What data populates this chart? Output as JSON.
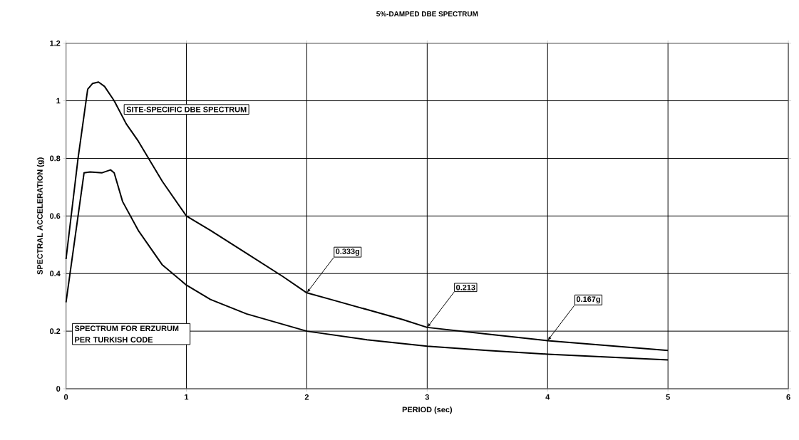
{
  "chart_data": {
    "type": "line",
    "title": "5%-DAMPED DBE SPECTRUM",
    "xlabel": "PERIOD (sec)",
    "ylabel": "SPECTRAL ACCELERATION (g)",
    "xlim": [
      0,
      6
    ],
    "ylim": [
      0,
      1.2
    ],
    "xticks": [
      0,
      1,
      2,
      3,
      4,
      5,
      6
    ],
    "yticks": [
      0,
      0.2,
      0.4,
      0.6,
      0.8,
      1,
      1.2
    ],
    "grid": true,
    "series": [
      {
        "name": "SITE-SPECIFIC DBE SPECTRUM",
        "color": "#000000",
        "x": [
          0,
          0.1,
          0.18,
          0.22,
          0.27,
          0.32,
          0.4,
          0.5,
          0.6,
          0.8,
          1.0,
          1.2,
          1.5,
          1.8,
          2.0,
          2.2,
          2.5,
          2.8,
          3.0,
          3.5,
          4.0,
          4.5,
          5.0
        ],
        "values": [
          0.45,
          0.8,
          1.04,
          1.06,
          1.065,
          1.05,
          1.0,
          0.92,
          0.86,
          0.72,
          0.6,
          0.55,
          0.47,
          0.39,
          0.333,
          0.31,
          0.275,
          0.24,
          0.213,
          0.19,
          0.167,
          0.15,
          0.133
        ]
      },
      {
        "name": "SPECTRUM FOR ERZURUM PER TURKISH CODE",
        "color": "#000000",
        "x": [
          0,
          0.15,
          0.2,
          0.3,
          0.37,
          0.4,
          0.47,
          0.6,
          0.8,
          1.0,
          1.2,
          1.5,
          2.0,
          2.5,
          3.0,
          3.5,
          4.0,
          4.5,
          5.0
        ],
        "values": [
          0.3,
          0.75,
          0.753,
          0.75,
          0.76,
          0.75,
          0.65,
          0.55,
          0.43,
          0.36,
          0.31,
          0.26,
          0.2,
          0.17,
          0.148,
          0.133,
          0.12,
          0.11,
          0.1
        ]
      }
    ],
    "annotations": [
      {
        "text": "0.333g",
        "x": 2,
        "y": 0.333
      },
      {
        "text": "0.213",
        "x": 3,
        "y": 0.213
      },
      {
        "text": "0.167g",
        "x": 4,
        "y": 0.167
      }
    ]
  }
}
